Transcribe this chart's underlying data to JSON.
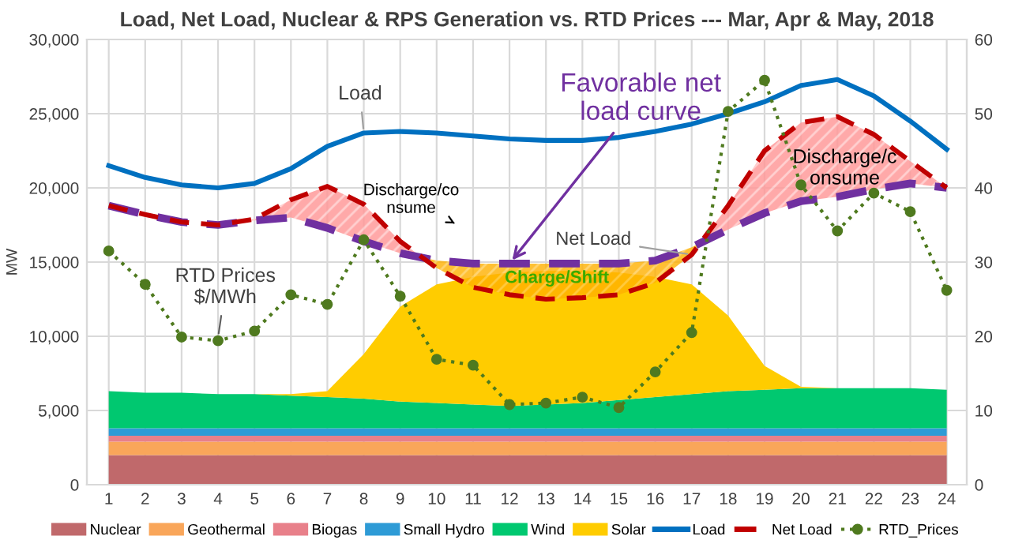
{
  "chart_data": {
    "type": "area",
    "title": "Load, Net Load, Nuclear & RPS Generation vs. RTD Prices --- Mar, Apr & May, 2018",
    "ylabel": "MW",
    "categories": [
      "1",
      "2",
      "3",
      "4",
      "5",
      "6",
      "7",
      "8",
      "9",
      "10",
      "11",
      "12",
      "13",
      "14",
      "15",
      "16",
      "17",
      "18",
      "19",
      "20",
      "21",
      "22",
      "23",
      "24"
    ],
    "stacked": true,
    "series": [
      {
        "name": "Nuclear",
        "color": "#c0696b",
        "values": [
          2000,
          2000,
          2000,
          2000,
          2000,
          2000,
          2000,
          2000,
          2000,
          2000,
          2000,
          2000,
          2000,
          2000,
          2000,
          2000,
          2000,
          2000,
          2000,
          2000,
          2000,
          2000,
          2000,
          2000
        ]
      },
      {
        "name": "Geothermal",
        "color": "#f9a65a",
        "values": [
          900,
          900,
          900,
          900,
          900,
          900,
          900,
          900,
          900,
          900,
          900,
          900,
          900,
          900,
          900,
          900,
          900,
          900,
          900,
          900,
          900,
          900,
          900,
          900
        ]
      },
      {
        "name": "Biogas",
        "color": "#e8808a",
        "values": [
          400,
          400,
          400,
          400,
          400,
          400,
          400,
          400,
          400,
          400,
          400,
          400,
          400,
          400,
          400,
          400,
          400,
          400,
          400,
          400,
          400,
          400,
          400,
          400
        ]
      },
      {
        "name": "Small Hydro",
        "color": "#2e9bd6",
        "values": [
          500,
          500,
          500,
          500,
          500,
          500,
          500,
          500,
          500,
          500,
          500,
          500,
          500,
          500,
          500,
          500,
          500,
          500,
          500,
          500,
          500,
          500,
          500,
          500
        ]
      },
      {
        "name": "Wind",
        "color": "#00c870",
        "values": [
          2500,
          2400,
          2400,
          2300,
          2300,
          2200,
          2100,
          2000,
          1800,
          1700,
          1600,
          1500,
          1600,
          1700,
          1900,
          2100,
          2300,
          2500,
          2600,
          2700,
          2700,
          2700,
          2700,
          2600
        ]
      },
      {
        "name": "Solar",
        "color": "#ffcc00",
        "values": [
          0,
          0,
          0,
          0,
          0,
          100,
          400,
          3000,
          6400,
          8000,
          8600,
          9000,
          9000,
          8900,
          8600,
          8100,
          7400,
          5100,
          1600,
          100,
          0,
          0,
          0,
          0
        ]
      },
      {
        "name": "Load",
        "type": "line",
        "color": "#0070c0",
        "line_style": "solid",
        "values": [
          21500,
          20700,
          20200,
          20000,
          20300,
          21300,
          22800,
          23700,
          23800,
          23700,
          23500,
          23300,
          23200,
          23200,
          23400,
          23800,
          24300,
          25000,
          25800,
          26900,
          27300,
          26200,
          24500,
          22600
        ]
      },
      {
        "name": "Net Load",
        "type": "line",
        "color": "#c00000",
        "line_style": "dashed",
        "values": [
          18800,
          18200,
          17700,
          17500,
          17900,
          19200,
          20100,
          18900,
          16400,
          14600,
          13300,
          12800,
          12500,
          12600,
          12800,
          13600,
          15500,
          18800,
          22500,
          24400,
          24800,
          23600,
          21800,
          20000
        ]
      },
      {
        "type": "line",
        "color": "#7030a0",
        "line_style": "dashed",
        "values": [
          18800,
          18200,
          17700,
          17500,
          17800,
          18000,
          17300,
          16400,
          15600,
          15100,
          14900,
          14900,
          14900,
          14900,
          14900,
          15100,
          16000,
          17200,
          18300,
          19100,
          19400,
          19900,
          20300,
          20000
        ]
      },
      {
        "name": "RTD_Prices",
        "type": "line",
        "axis": "y2",
        "color": "#4f7a1f",
        "line_style": "dotted",
        "marker": "circle",
        "values": [
          31.5,
          27,
          19.9,
          19.4,
          20.7,
          25.6,
          24.3,
          33,
          25.4,
          16.9,
          16.1,
          10.8,
          11,
          11.8,
          10.4,
          15.2,
          20.5,
          50.3,
          54.5,
          40.4,
          34.2,
          39.3,
          36.8,
          26.2
        ]
      }
    ],
    "ylim": [
      0,
      30000
    ],
    "yticks": [
      {
        "value": 0,
        "label": "0"
      },
      {
        "value": 5000,
        "label": "5,000"
      },
      {
        "value": 10000,
        "label": "10,000"
      },
      {
        "value": 15000,
        "label": "15,000"
      },
      {
        "value": 20000,
        "label": "20,000"
      },
      {
        "value": 25000,
        "label": "25,000"
      },
      {
        "value": 30000,
        "label": "30,000"
      }
    ],
    "y2lim": [
      0,
      60
    ],
    "y2ticks": [
      0,
      10,
      20,
      30,
      40,
      50,
      60
    ],
    "grid": true,
    "legend": "bottom",
    "annotations": [
      {
        "text": "Load",
        "x": "8",
        "y": 23700
      },
      {
        "text": "Net Load",
        "x": "17",
        "y": 15500
      },
      {
        "text": "Favorable net\nload curve",
        "x": "12",
        "y": 14900
      },
      "RTD Prices\n$/MWh",
      "Discharge/co\nnsume",
      "Charge/Shift",
      "Discharge/c\nonsume"
    ]
  }
}
